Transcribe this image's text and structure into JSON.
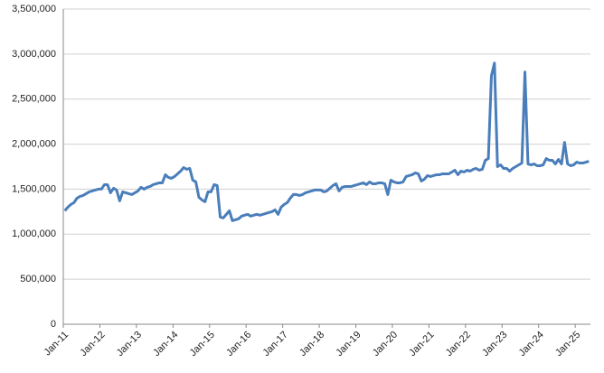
{
  "chart_data": {
    "type": "line",
    "color": "#4a7ebb",
    "grid": true,
    "ylim": [
      0,
      3500000
    ],
    "yticks": [
      0,
      {
        "value": 500000,
        "label": "500,000"
      },
      {
        "value": 1000000,
        "label": "1,000,000"
      },
      {
        "value": 1500000,
        "label": "1,500,000"
      },
      {
        "value": 2000000,
        "label": "2,000,000"
      },
      {
        "value": 2500000,
        "label": "2,500,000"
      },
      {
        "value": 3000000,
        "label": "3,000,000"
      },
      {
        "value": 3500000,
        "label": "3,500,000"
      }
    ],
    "categories": [
      "Jan-11",
      null,
      null,
      null,
      null,
      null,
      null,
      null,
      null,
      null,
      null,
      null,
      "Jan-12",
      null,
      null,
      null,
      null,
      null,
      null,
      null,
      null,
      null,
      null,
      null,
      "Jan-13",
      null,
      null,
      null,
      null,
      null,
      null,
      null,
      null,
      null,
      null,
      null,
      "Jan-14",
      null,
      null,
      null,
      null,
      null,
      null,
      null,
      null,
      null,
      null,
      null,
      "Jan-15",
      null,
      null,
      null,
      null,
      null,
      null,
      null,
      null,
      null,
      null,
      null,
      "Jan-16",
      null,
      null,
      null,
      null,
      null,
      null,
      null,
      null,
      null,
      null,
      null,
      "Jan-17",
      null,
      null,
      null,
      null,
      null,
      null,
      null,
      null,
      null,
      null,
      null,
      "Jan-18",
      null,
      null,
      null,
      null,
      null,
      null,
      null,
      null,
      null,
      null,
      null,
      "Jan-19",
      null,
      null,
      null,
      null,
      null,
      null,
      null,
      null,
      null,
      null,
      null,
      "Jan-20",
      null,
      null,
      null,
      null,
      null,
      null,
      null,
      null,
      null,
      null,
      null,
      "Jan-21",
      null,
      null,
      null,
      null,
      null,
      null,
      null,
      null,
      null,
      null,
      null,
      "Jan-22",
      null,
      null,
      null,
      null,
      null,
      null,
      null,
      null,
      null,
      null,
      null,
      "Jan-23",
      null,
      null,
      null,
      null,
      null,
      null,
      null,
      null,
      null,
      null,
      null,
      "Jan-24",
      null,
      null,
      null,
      null,
      null,
      null,
      null,
      null,
      null,
      null,
      null,
      "Jan-25",
      null,
      null,
      null,
      null
    ],
    "values": [
      1260000,
      1300000,
      1330000,
      1350000,
      1400000,
      1420000,
      1430000,
      1450000,
      1470000,
      1480000,
      1490000,
      1500000,
      1500000,
      1550000,
      1550000,
      1460000,
      1510000,
      1490000,
      1370000,
      1470000,
      1460000,
      1450000,
      1440000,
      1460000,
      1480000,
      1520000,
      1500000,
      1520000,
      1530000,
      1550000,
      1560000,
      1570000,
      1570000,
      1660000,
      1630000,
      1620000,
      1640000,
      1670000,
      1700000,
      1740000,
      1720000,
      1730000,
      1600000,
      1580000,
      1410000,
      1380000,
      1360000,
      1470000,
      1470000,
      1550000,
      1540000,
      1190000,
      1180000,
      1220000,
      1260000,
      1150000,
      1160000,
      1170000,
      1200000,
      1210000,
      1220000,
      1200000,
      1210000,
      1220000,
      1210000,
      1220000,
      1230000,
      1240000,
      1250000,
      1270000,
      1220000,
      1300000,
      1330000,
      1350000,
      1400000,
      1440000,
      1440000,
      1430000,
      1440000,
      1460000,
      1470000,
      1480000,
      1490000,
      1490000,
      1490000,
      1470000,
      1480000,
      1510000,
      1540000,
      1560000,
      1480000,
      1520000,
      1530000,
      1530000,
      1530000,
      1540000,
      1550000,
      1560000,
      1570000,
      1550000,
      1580000,
      1560000,
      1560000,
      1570000,
      1570000,
      1560000,
      1440000,
      1600000,
      1580000,
      1570000,
      1570000,
      1580000,
      1640000,
      1650000,
      1660000,
      1680000,
      1670000,
      1590000,
      1610000,
      1650000,
      1640000,
      1650000,
      1660000,
      1660000,
      1670000,
      1670000,
      1670000,
      1690000,
      1710000,
      1660000,
      1700000,
      1690000,
      1710000,
      1700000,
      1720000,
      1730000,
      1710000,
      1720000,
      1820000,
      1840000,
      2760000,
      2900000,
      1750000,
      1770000,
      1730000,
      1730000,
      1700000,
      1730000,
      1750000,
      1770000,
      1790000,
      2800000,
      1780000,
      1770000,
      1780000,
      1760000,
      1760000,
      1770000,
      1840000,
      1820000,
      1820000,
      1780000,
      1830000,
      1780000,
      2020000,
      1780000,
      1760000,
      1770000,
      1800000,
      1790000,
      1790000,
      1800000,
      1810000
    ]
  }
}
